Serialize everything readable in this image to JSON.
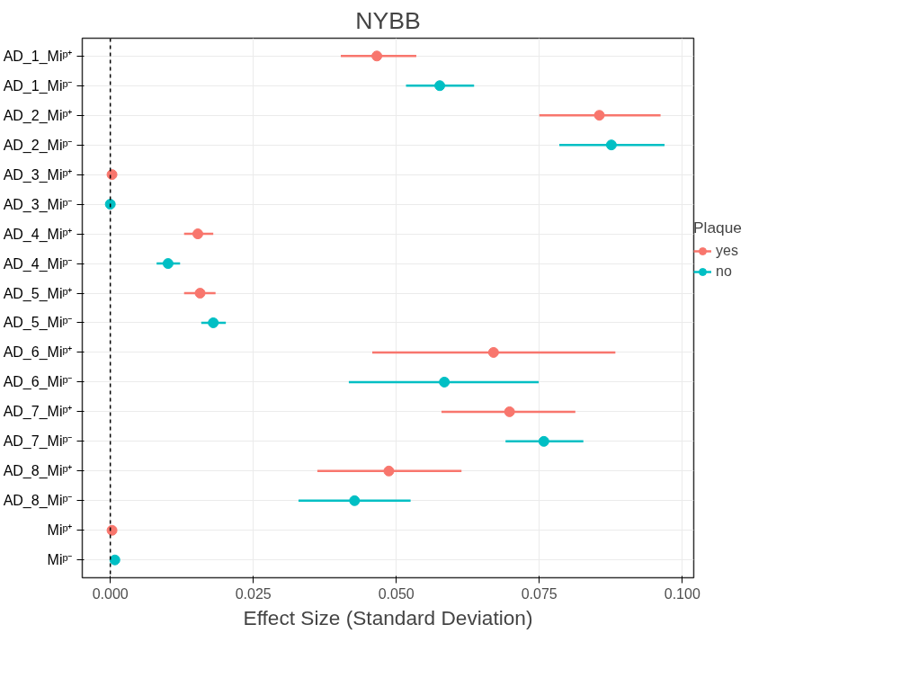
{
  "chart_data": {
    "type": "scatter",
    "orientation": "horizontal",
    "title": "NYBB",
    "xlabel": "Effect Size (Standard Deviation)",
    "legend_title": "Plaque",
    "categories": [
      "AD_1_Miᵖ⁺",
      "AD_1_Miᵖ⁻",
      "AD_2_Miᵖ⁺",
      "AD_2_Miᵖ⁻",
      "AD_3_Miᵖ⁺",
      "AD_3_Miᵖ⁻",
      "AD_4_Miᵖ⁺",
      "AD_4_Miᵖ⁻",
      "AD_5_Miᵖ⁺",
      "AD_5_Miᵖ⁻",
      "AD_6_Miᵖ⁺",
      "AD_6_Miᵖ⁻",
      "AD_7_Miᵖ⁺",
      "AD_7_Miᵖ⁻",
      "AD_8_Miᵖ⁺",
      "AD_8_Miᵖ⁻",
      "Miᵖ⁺",
      "Miᵖ⁻"
    ],
    "series": [
      {
        "name": "yes",
        "color": "#f8766d",
        "values": [
          0.0466,
          null,
          0.0855,
          null,
          0.0003,
          null,
          0.0153,
          null,
          0.0157,
          null,
          0.067,
          null,
          0.0698,
          null,
          0.0487,
          null,
          0.0003,
          null
        ],
        "errors": [
          [
            0.0403,
            0.0535
          ],
          null,
          [
            0.075,
            0.0962
          ],
          null,
          null,
          null,
          [
            0.0129,
            0.018
          ],
          null,
          [
            0.0129,
            0.0184
          ],
          null,
          [
            0.0458,
            0.0883
          ],
          null,
          [
            0.0579,
            0.0813
          ],
          null,
          [
            0.0362,
            0.0614
          ],
          null,
          null,
          null
        ]
      },
      {
        "name": "no",
        "color": "#00bfc4",
        "values": [
          null,
          0.0576,
          null,
          0.0876,
          null,
          0.0,
          null,
          0.0101,
          null,
          0.018,
          null,
          0.0584,
          null,
          0.0758,
          null,
          0.0427,
          null,
          0.0008
        ],
        "errors": [
          null,
          [
            0.0517,
            0.0636
          ],
          null,
          [
            0.0785,
            0.0969
          ],
          null,
          null,
          null,
          [
            0.0081,
            0.0122
          ],
          null,
          [
            0.0159,
            0.0202
          ],
          null,
          [
            0.0417,
            0.0749
          ],
          null,
          [
            0.0691,
            0.0827
          ],
          null,
          [
            0.0329,
            0.0525
          ],
          null,
          null
        ]
      }
    ],
    "xlim": [
      -0.0049,
      0.102
    ],
    "xticks": [
      {
        "value": 0,
        "label": "0.000"
      },
      {
        "value": 0.025,
        "label": "0.025"
      },
      {
        "value": 0.05,
        "label": "0.050"
      },
      {
        "value": 0.075,
        "label": "0.075"
      },
      {
        "value": 0.1,
        "label": "0.100"
      }
    ],
    "ref_lines": [
      {
        "axis": "x",
        "value": 0,
        "label": null,
        "color": "#000000",
        "line_style": "dashed"
      }
    ],
    "grid": true,
    "legend": "right",
    "marker": "circle"
  }
}
